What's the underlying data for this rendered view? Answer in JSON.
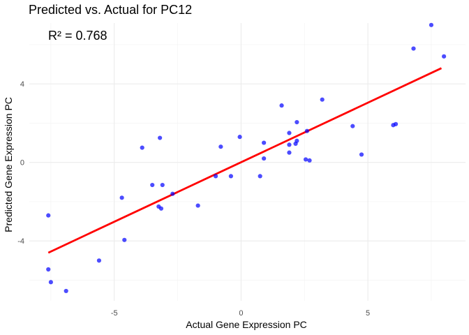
{
  "chart_data": {
    "type": "scatter",
    "title": "Predicted vs. Actual for PC12",
    "xlabel": "Actual Gene Expression PC",
    "ylabel": "Predicted Gene Expression PC",
    "annotation": "R² = 0.768",
    "xlim": [
      -8.35,
      8.85
    ],
    "ylim": [
      -7.05,
      7.1
    ],
    "x_ticks": [
      -5,
      0,
      5
    ],
    "x_tick_labels": [
      "-5",
      "0",
      "5"
    ],
    "y_ticks": [
      -4,
      0,
      4
    ],
    "y_tick_labels": [
      "-4",
      "0",
      "4"
    ],
    "grid": true,
    "point_color": "#0000ff",
    "line_color": "#ff0000",
    "points": [
      {
        "x": 7.5,
        "y": 7.0
      },
      {
        "x": 6.8,
        "y": 5.8
      },
      {
        "x": 8.0,
        "y": 5.4
      },
      {
        "x": 3.2,
        "y": 3.2
      },
      {
        "x": 1.6,
        "y": 2.9
      },
      {
        "x": 2.2,
        "y": 2.05
      },
      {
        "x": 6.1,
        "y": 1.95
      },
      {
        "x": 6.0,
        "y": 1.9
      },
      {
        "x": 4.4,
        "y": 1.85
      },
      {
        "x": 2.6,
        "y": 1.6
      },
      {
        "x": 1.9,
        "y": 1.5
      },
      {
        "x": -0.05,
        "y": 1.3
      },
      {
        "x": -3.2,
        "y": 1.25
      },
      {
        "x": 2.2,
        "y": 1.1
      },
      {
        "x": 0.9,
        "y": 1.0
      },
      {
        "x": 1.9,
        "y": 0.9
      },
      {
        "x": 2.15,
        "y": 0.95
      },
      {
        "x": -0.8,
        "y": 0.8
      },
      {
        "x": -3.9,
        "y": 0.75
      },
      {
        "x": 1.9,
        "y": 0.5
      },
      {
        "x": 4.75,
        "y": 0.4
      },
      {
        "x": 0.9,
        "y": 0.2
      },
      {
        "x": 2.55,
        "y": 0.15
      },
      {
        "x": 2.7,
        "y": 0.1
      },
      {
        "x": -1.0,
        "y": -0.7
      },
      {
        "x": -0.4,
        "y": -0.7
      },
      {
        "x": 0.75,
        "y": -0.7
      },
      {
        "x": -3.5,
        "y": -1.15
      },
      {
        "x": -3.1,
        "y": -1.15
      },
      {
        "x": -2.7,
        "y": -1.6
      },
      {
        "x": -4.7,
        "y": -1.8
      },
      {
        "x": -1.7,
        "y": -2.2
      },
      {
        "x": -3.25,
        "y": -2.25
      },
      {
        "x": -3.15,
        "y": -2.35
      },
      {
        "x": -7.6,
        "y": -2.7
      },
      {
        "x": -4.6,
        "y": -3.95
      },
      {
        "x": -5.6,
        "y": -5.0
      },
      {
        "x": -7.6,
        "y": -5.45
      },
      {
        "x": -7.5,
        "y": -6.1
      },
      {
        "x": -6.9,
        "y": -6.55
      }
    ],
    "fit_line": {
      "x": [
        -7.6,
        7.9
      ],
      "y": [
        -4.6,
        4.8
      ]
    }
  }
}
